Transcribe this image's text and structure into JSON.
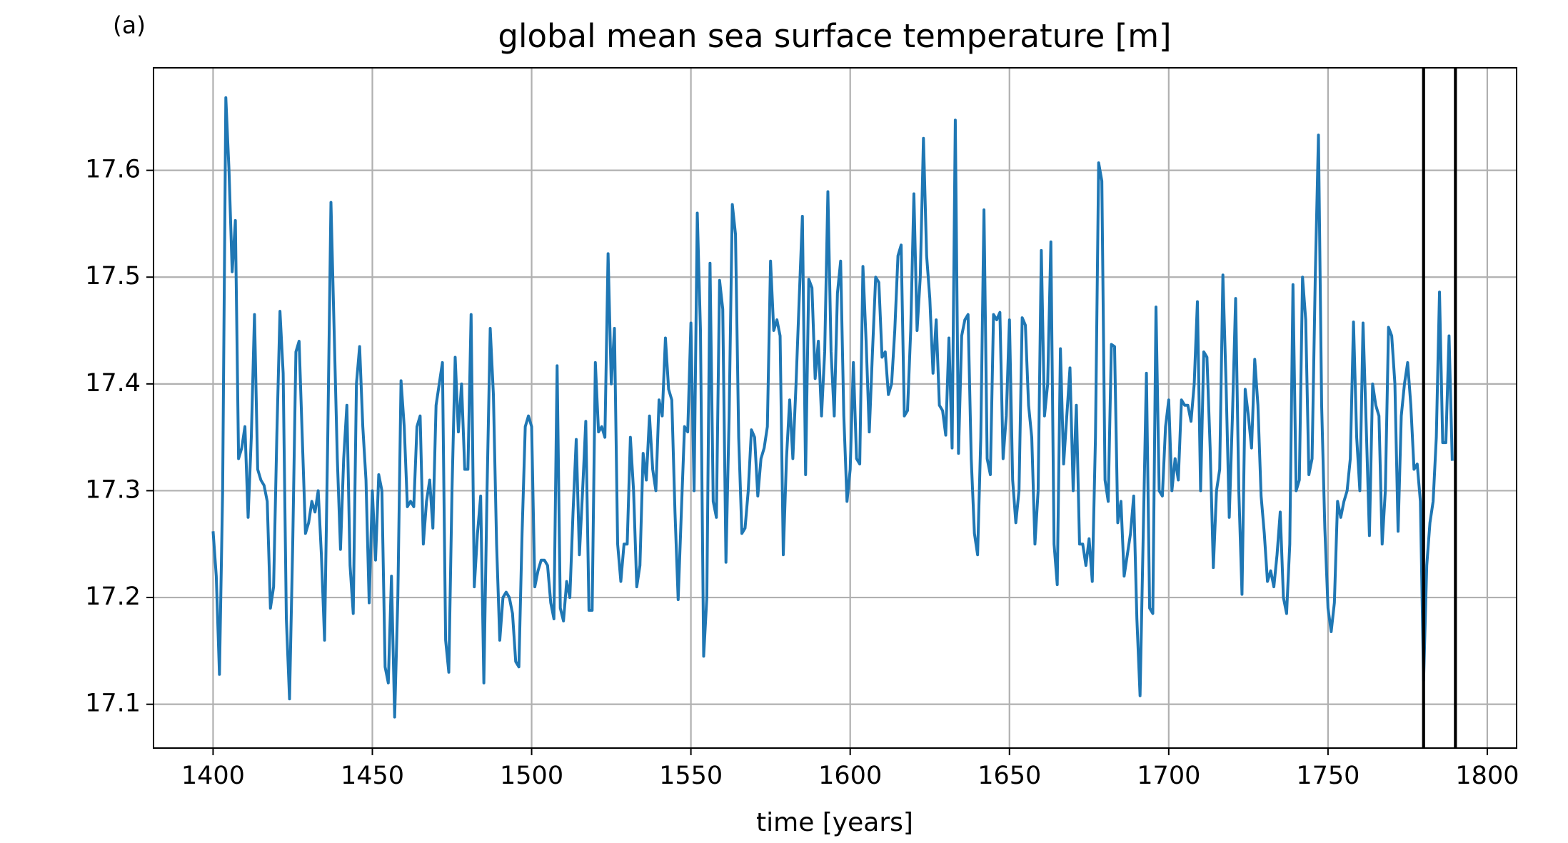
{
  "chart_data": {
    "type": "line",
    "annotation": "(a)",
    "title": "global mean sea surface temperature [m]",
    "xlabel": "time [years]",
    "xlim": [
      1381.3,
      1809.2
    ],
    "ylim": [
      17.059,
      17.696
    ],
    "xticks": [
      1400,
      1450,
      1500,
      1550,
      1600,
      1650,
      1700,
      1750,
      1800
    ],
    "yticks": [
      17.1,
      17.2,
      17.3,
      17.4,
      17.5,
      17.6
    ],
    "grid": true,
    "vlines": [
      1780,
      1790
    ],
    "vline_color": "#000000",
    "x": [
      1400,
      1401,
      1402,
      1403,
      1404,
      1405,
      1406,
      1407,
      1408,
      1409,
      1410,
      1411,
      1412,
      1413,
      1414,
      1415,
      1416,
      1417,
      1418,
      1419,
      1420,
      1421,
      1422,
      1423,
      1424,
      1425,
      1426,
      1427,
      1428,
      1429,
      1430,
      1431,
      1432,
      1433,
      1434,
      1435,
      1436,
      1437,
      1438,
      1439,
      1440,
      1441,
      1442,
      1443,
      1444,
      1445,
      1446,
      1447,
      1448,
      1449,
      1450,
      1451,
      1452,
      1453,
      1454,
      1455,
      1456,
      1457,
      1458,
      1459,
      1460,
      1461,
      1462,
      1463,
      1464,
      1465,
      1466,
      1467,
      1468,
      1469,
      1470,
      1471,
      1472,
      1473,
      1474,
      1475,
      1476,
      1477,
      1478,
      1479,
      1480,
      1481,
      1482,
      1483,
      1484,
      1485,
      1486,
      1487,
      1488,
      1489,
      1490,
      1491,
      1492,
      1493,
      1494,
      1495,
      1496,
      1497,
      1498,
      1499,
      1500,
      1501,
      1502,
      1503,
      1504,
      1505,
      1506,
      1507,
      1508,
      1509,
      1510,
      1511,
      1512,
      1513,
      1514,
      1515,
      1516,
      1517,
      1518,
      1519,
      1520,
      1521,
      1522,
      1523,
      1524,
      1525,
      1526,
      1527,
      1528,
      1529,
      1530,
      1531,
      1532,
      1533,
      1534,
      1535,
      1536,
      1537,
      1538,
      1539,
      1540,
      1541,
      1542,
      1543,
      1544,
      1545,
      1546,
      1547,
      1548,
      1549,
      1550,
      1551,
      1552,
      1553,
      1554,
      1555,
      1556,
      1557,
      1558,
      1559,
      1560,
      1561,
      1562,
      1563,
      1564,
      1565,
      1566,
      1567,
      1568,
      1569,
      1570,
      1571,
      1572,
      1573,
      1574,
      1575,
      1576,
      1577,
      1578,
      1579,
      1580,
      1581,
      1582,
      1583,
      1584,
      1585,
      1586,
      1587,
      1588,
      1589,
      1590,
      1591,
      1592,
      1593,
      1594,
      1595,
      1596,
      1597,
      1598,
      1599,
      1600,
      1601,
      1602,
      1603,
      1604,
      1605,
      1606,
      1607,
      1608,
      1609,
      1610,
      1611,
      1612,
      1613,
      1614,
      1615,
      1616,
      1617,
      1618,
      1619,
      1620,
      1621,
      1622,
      1623,
      1624,
      1625,
      1626,
      1627,
      1628,
      1629,
      1630,
      1631,
      1632,
      1633,
      1634,
      1635,
      1636,
      1637,
      1638,
      1639,
      1640,
      1641,
      1642,
      1643,
      1644,
      1645,
      1646,
      1647,
      1648,
      1649,
      1650,
      1651,
      1652,
      1653,
      1654,
      1655,
      1656,
      1657,
      1658,
      1659,
      1660,
      1661,
      1662,
      1663,
      1664,
      1665,
      1666,
      1667,
      1668,
      1669,
      1670,
      1671,
      1672,
      1673,
      1674,
      1675,
      1676,
      1677,
      1678,
      1679,
      1680,
      1681,
      1682,
      1683,
      1684,
      1685,
      1686,
      1687,
      1688,
      1689,
      1690,
      1691,
      1692,
      1693,
      1694,
      1695,
      1696,
      1697,
      1698,
      1699,
      1700,
      1701,
      1702,
      1703,
      1704,
      1705,
      1706,
      1707,
      1708,
      1709,
      1710,
      1711,
      1712,
      1713,
      1714,
      1715,
      1716,
      1717,
      1718,
      1719,
      1720,
      1721,
      1722,
      1723,
      1724,
      1725,
      1726,
      1727,
      1728,
      1729,
      1730,
      1731,
      1732,
      1733,
      1734,
      1735,
      1736,
      1737,
      1738,
      1739,
      1740,
      1741,
      1742,
      1743,
      1744,
      1745,
      1746,
      1747,
      1748,
      1749,
      1750,
      1751,
      1752,
      1753,
      1754,
      1755,
      1756,
      1757,
      1758,
      1759,
      1760,
      1761,
      1762,
      1763,
      1764,
      1765,
      1766,
      1767,
      1768,
      1769,
      1770,
      1771,
      1772,
      1773,
      1774,
      1775,
      1776,
      1777,
      1778,
      1779,
      1780,
      1781,
      1782,
      1783,
      1784,
      1785,
      1786,
      1787,
      1788,
      1789
    ],
    "series": [
      {
        "color": "#1f77b4",
        "values": [
          17.262,
          17.22,
          17.128,
          17.3,
          17.668,
          17.6,
          17.505,
          17.553,
          17.33,
          17.34,
          17.36,
          17.275,
          17.35,
          17.465,
          17.32,
          17.31,
          17.305,
          17.29,
          17.19,
          17.21,
          17.35,
          17.468,
          17.41,
          17.18,
          17.105,
          17.25,
          17.43,
          17.44,
          17.35,
          17.26,
          17.27,
          17.29,
          17.28,
          17.3,
          17.24,
          17.16,
          17.35,
          17.57,
          17.45,
          17.33,
          17.245,
          17.33,
          17.38,
          17.23,
          17.185,
          17.4,
          17.435,
          17.36,
          17.31,
          17.195,
          17.3,
          17.235,
          17.315,
          17.3,
          17.135,
          17.12,
          17.22,
          17.088,
          17.2,
          17.403,
          17.36,
          17.285,
          17.29,
          17.285,
          17.36,
          17.37,
          17.25,
          17.29,
          17.31,
          17.265,
          17.38,
          17.4,
          17.42,
          17.16,
          17.13,
          17.3,
          17.425,
          17.355,
          17.4,
          17.32,
          17.32,
          17.465,
          17.21,
          17.26,
          17.295,
          17.12,
          17.3,
          17.452,
          17.39,
          17.25,
          17.16,
          17.2,
          17.205,
          17.2,
          17.185,
          17.14,
          17.135,
          17.26,
          17.36,
          17.37,
          17.36,
          17.21,
          17.225,
          17.235,
          17.235,
          17.23,
          17.195,
          17.18,
          17.417,
          17.19,
          17.178,
          17.215,
          17.2,
          17.28,
          17.348,
          17.24,
          17.3,
          17.365,
          17.188,
          17.188,
          17.42,
          17.355,
          17.36,
          17.35,
          17.522,
          17.4,
          17.452,
          17.25,
          17.215,
          17.25,
          17.25,
          17.35,
          17.3,
          17.21,
          17.23,
          17.335,
          17.31,
          17.37,
          17.32,
          17.3,
          17.385,
          17.37,
          17.443,
          17.395,
          17.385,
          17.28,
          17.198,
          17.28,
          17.36,
          17.355,
          17.457,
          17.3,
          17.56,
          17.45,
          17.145,
          17.2,
          17.513,
          17.29,
          17.275,
          17.497,
          17.47,
          17.233,
          17.37,
          17.568,
          17.54,
          17.35,
          17.26,
          17.265,
          17.3,
          17.357,
          17.35,
          17.295,
          17.33,
          17.34,
          17.36,
          17.515,
          17.45,
          17.46,
          17.445,
          17.24,
          17.33,
          17.385,
          17.33,
          17.4,
          17.48,
          17.557,
          17.315,
          17.498,
          17.49,
          17.405,
          17.44,
          17.37,
          17.43,
          17.58,
          17.43,
          17.37,
          17.485,
          17.515,
          17.37,
          17.29,
          17.32,
          17.42,
          17.33,
          17.325,
          17.51,
          17.44,
          17.355,
          17.43,
          17.5,
          17.495,
          17.425,
          17.43,
          17.39,
          17.4,
          17.45,
          17.52,
          17.53,
          17.37,
          17.375,
          17.45,
          17.578,
          17.45,
          17.5,
          17.63,
          17.52,
          17.48,
          17.41,
          17.46,
          17.38,
          17.375,
          17.352,
          17.443,
          17.34,
          17.647,
          17.335,
          17.445,
          17.46,
          17.465,
          17.33,
          17.26,
          17.24,
          17.35,
          17.563,
          17.33,
          17.315,
          17.465,
          17.46,
          17.467,
          17.33,
          17.37,
          17.46,
          17.31,
          17.27,
          17.3,
          17.462,
          17.455,
          17.38,
          17.35,
          17.25,
          17.3,
          17.525,
          17.37,
          17.4,
          17.533,
          17.25,
          17.212,
          17.433,
          17.325,
          17.37,
          17.415,
          17.3,
          17.38,
          17.25,
          17.25,
          17.23,
          17.255,
          17.215,
          17.35,
          17.607,
          17.59,
          17.31,
          17.29,
          17.437,
          17.435,
          17.27,
          17.29,
          17.22,
          17.24,
          17.26,
          17.295,
          17.18,
          17.108,
          17.26,
          17.41,
          17.19,
          17.185,
          17.472,
          17.3,
          17.295,
          17.36,
          17.385,
          17.3,
          17.33,
          17.31,
          17.385,
          17.38,
          17.38,
          17.365,
          17.4,
          17.477,
          17.3,
          17.43,
          17.425,
          17.34,
          17.228,
          17.3,
          17.32,
          17.502,
          17.4,
          17.275,
          17.37,
          17.48,
          17.3,
          17.203,
          17.395,
          17.37,
          17.34,
          17.423,
          17.38,
          17.295,
          17.26,
          17.215,
          17.225,
          17.21,
          17.24,
          17.28,
          17.2,
          17.185,
          17.25,
          17.493,
          17.3,
          17.31,
          17.5,
          17.46,
          17.315,
          17.33,
          17.5,
          17.633,
          17.38,
          17.265,
          17.19,
          17.168,
          17.195,
          17.29,
          17.275,
          17.29,
          17.3,
          17.33,
          17.458,
          17.35,
          17.3,
          17.457,
          17.36,
          17.258,
          17.4,
          17.38,
          17.37,
          17.25,
          17.3,
          17.453,
          17.445,
          17.4,
          17.262,
          17.37,
          17.4,
          17.42,
          17.38,
          17.32,
          17.325,
          17.29,
          17.122,
          17.23,
          17.27,
          17.29,
          17.35,
          17.486,
          17.345,
          17.345,
          17.445,
          17.328
        ]
      }
    ]
  }
}
